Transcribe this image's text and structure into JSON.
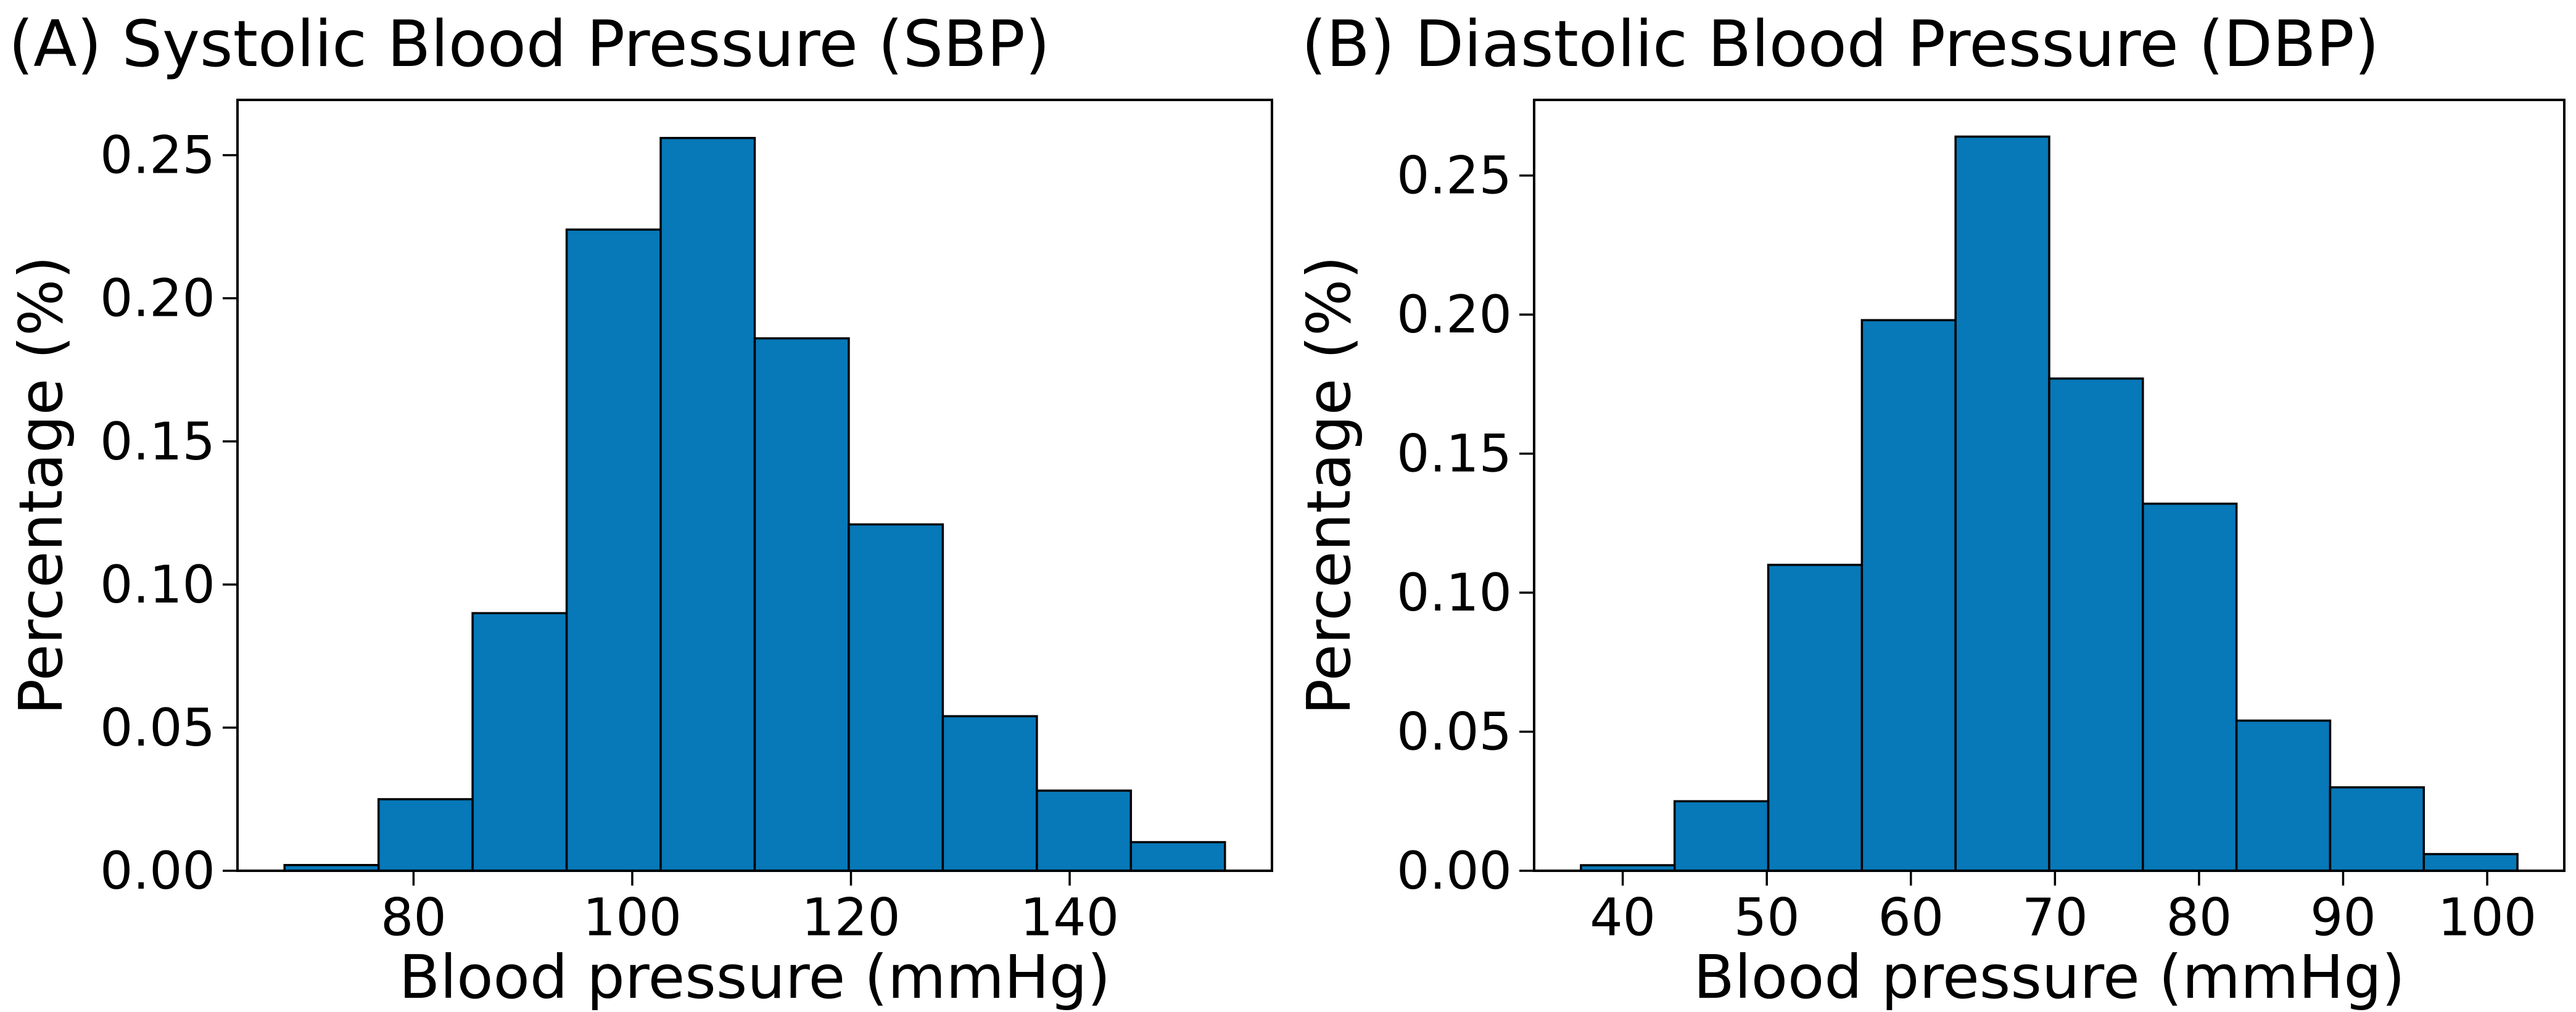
{
  "figure": {
    "background_color": "#ffffff",
    "text_color": "#000000"
  },
  "chart_data": [
    {
      "type": "bar",
      "subtype": "histogram",
      "title": "(A) Systolic Blood Pressure (SBP)",
      "xlabel": "Blood pressure (mmHg)",
      "ylabel": "Percentage (%)",
      "bin_start": 68.2,
      "bin_width": 8.6,
      "values": [
        0.002,
        0.025,
        0.09,
        0.224,
        0.256,
        0.186,
        0.121,
        0.054,
        0.028,
        0.01
      ],
      "xticks": [
        80,
        100,
        120,
        140
      ],
      "xtick_labels": [
        "80",
        "100",
        "120",
        "140"
      ],
      "yticks": [
        0.0,
        0.05,
        0.1,
        0.15,
        0.2,
        0.25
      ],
      "ytick_labels": [
        "0.00",
        "0.05",
        "0.10",
        "0.15",
        "0.20",
        "0.25"
      ],
      "xlim": [
        63.9,
        158.5
      ],
      "ylim": [
        0,
        0.2693
      ],
      "grid": false,
      "legend": null,
      "bar_color": "#0778b8",
      "bar_edge_color": "#000000"
    },
    {
      "type": "bar",
      "subtype": "histogram",
      "title": "(B) Diastolic Blood Pressure (DBP)",
      "xlabel": "Blood pressure (mmHg)",
      "ylabel": "Percentage (%)",
      "bin_start": 37.1,
      "bin_width": 6.5,
      "values": [
        0.002,
        0.025,
        0.11,
        0.198,
        0.264,
        0.177,
        0.132,
        0.054,
        0.03,
        0.006
      ],
      "xticks": [
        40,
        50,
        60,
        70,
        80,
        90,
        100
      ],
      "xtick_labels": [
        "40",
        "50",
        "60",
        "70",
        "80",
        "90",
        "100"
      ],
      "yticks": [
        0.0,
        0.05,
        0.1,
        0.15,
        0.2,
        0.25
      ],
      "ytick_labels": [
        "0.00",
        "0.05",
        "0.10",
        "0.15",
        "0.20",
        "0.25"
      ],
      "xlim": [
        33.85,
        105.35
      ],
      "ylim": [
        0,
        0.2772
      ],
      "grid": false,
      "legend": null,
      "bar_color": "#0778b8",
      "bar_edge_color": "#000000"
    }
  ]
}
